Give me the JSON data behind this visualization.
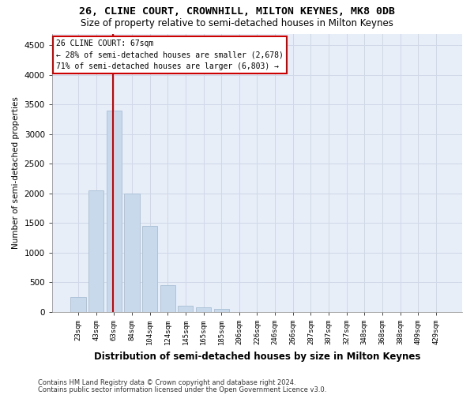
{
  "title": "26, CLINE COURT, CROWNHILL, MILTON KEYNES, MK8 0DB",
  "subtitle": "Size of property relative to semi-detached houses in Milton Keynes",
  "xlabel": "Distribution of semi-detached houses by size in Milton Keynes",
  "ylabel": "Number of semi-detached properties",
  "footer1": "Contains HM Land Registry data © Crown copyright and database right 2024.",
  "footer2": "Contains public sector information licensed under the Open Government Licence v3.0.",
  "annotation_title": "26 CLINE COURT: 67sqm",
  "annotation_line1": "← 28% of semi-detached houses are smaller (2,678)",
  "annotation_line2": "71% of semi-detached houses are larger (6,803) →",
  "bar_color": "#c9d9ec",
  "bar_edge_color": "#a8bfd4",
  "vline_color": "#cc0000",
  "annotation_box_color": "#cc0000",
  "grid_color": "#d0d8e8",
  "background_color": "#e8eef8",
  "categories": [
    "23sqm",
    "43sqm",
    "63sqm",
    "84sqm",
    "104sqm",
    "124sqm",
    "145sqm",
    "165sqm",
    "185sqm",
    "206sqm",
    "226sqm",
    "246sqm",
    "266sqm",
    "287sqm",
    "307sqm",
    "327sqm",
    "348sqm",
    "368sqm",
    "388sqm",
    "409sqm",
    "429sqm"
  ],
  "values": [
    250,
    2050,
    3400,
    2000,
    1450,
    450,
    100,
    75,
    50,
    0,
    0,
    0,
    0,
    0,
    0,
    0,
    0,
    0,
    0,
    0,
    0
  ],
  "ylim": [
    0,
    4700
  ],
  "yticks": [
    0,
    500,
    1000,
    1500,
    2000,
    2500,
    3000,
    3500,
    4000,
    4500
  ],
  "vline_x": 1.95,
  "figsize": [
    6.0,
    5.0
  ],
  "dpi": 100
}
